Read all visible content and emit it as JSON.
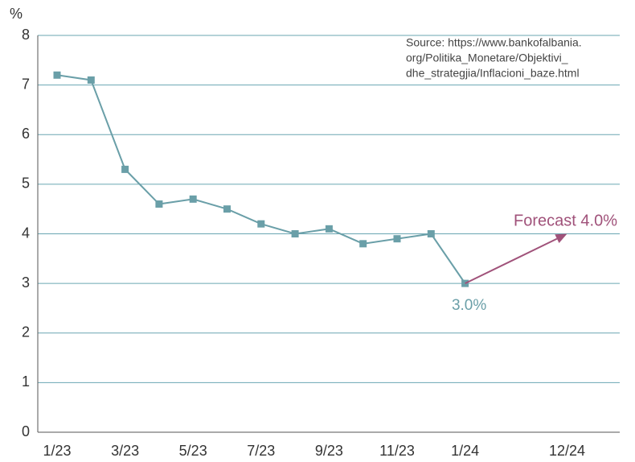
{
  "chart_data": {
    "type": "line",
    "y_label": "%",
    "source": [
      "Source:  https://www.bankofalbania.",
      "org/Politika_Monetare/Objektivi_",
      "dhe_strategjia/Inflacioni_baze.html"
    ],
    "categories": [
      "1/23",
      null,
      "3/23",
      null,
      "5/23",
      null,
      "7/23",
      null,
      "9/23",
      null,
      "11/23",
      null,
      "1/24",
      null,
      null,
      "12/24"
    ],
    "series": [
      {
        "color": "#6a9fa8",
        "values": [
          7.2,
          7.1,
          5.3,
          4.6,
          4.7,
          4.5,
          4.2,
          4.0,
          4.1,
          3.8,
          3.9,
          4.0,
          3.0,
          null,
          null,
          null
        ],
        "value_labels": [
          null,
          null,
          null,
          null,
          null,
          null,
          null,
          null,
          null,
          null,
          null,
          null,
          "3.0%",
          null,
          null,
          null
        ]
      }
    ],
    "forecast": {
      "label": "Forecast 4.0%",
      "start": 3.0,
      "end": 4.0,
      "color": "#a0527a"
    },
    "ylim": [
      0,
      8
    ],
    "yticks": [
      0,
      1,
      2,
      3,
      4,
      5,
      6,
      7,
      8
    ],
    "grid": true,
    "grid_color": "#6aa6b2"
  }
}
